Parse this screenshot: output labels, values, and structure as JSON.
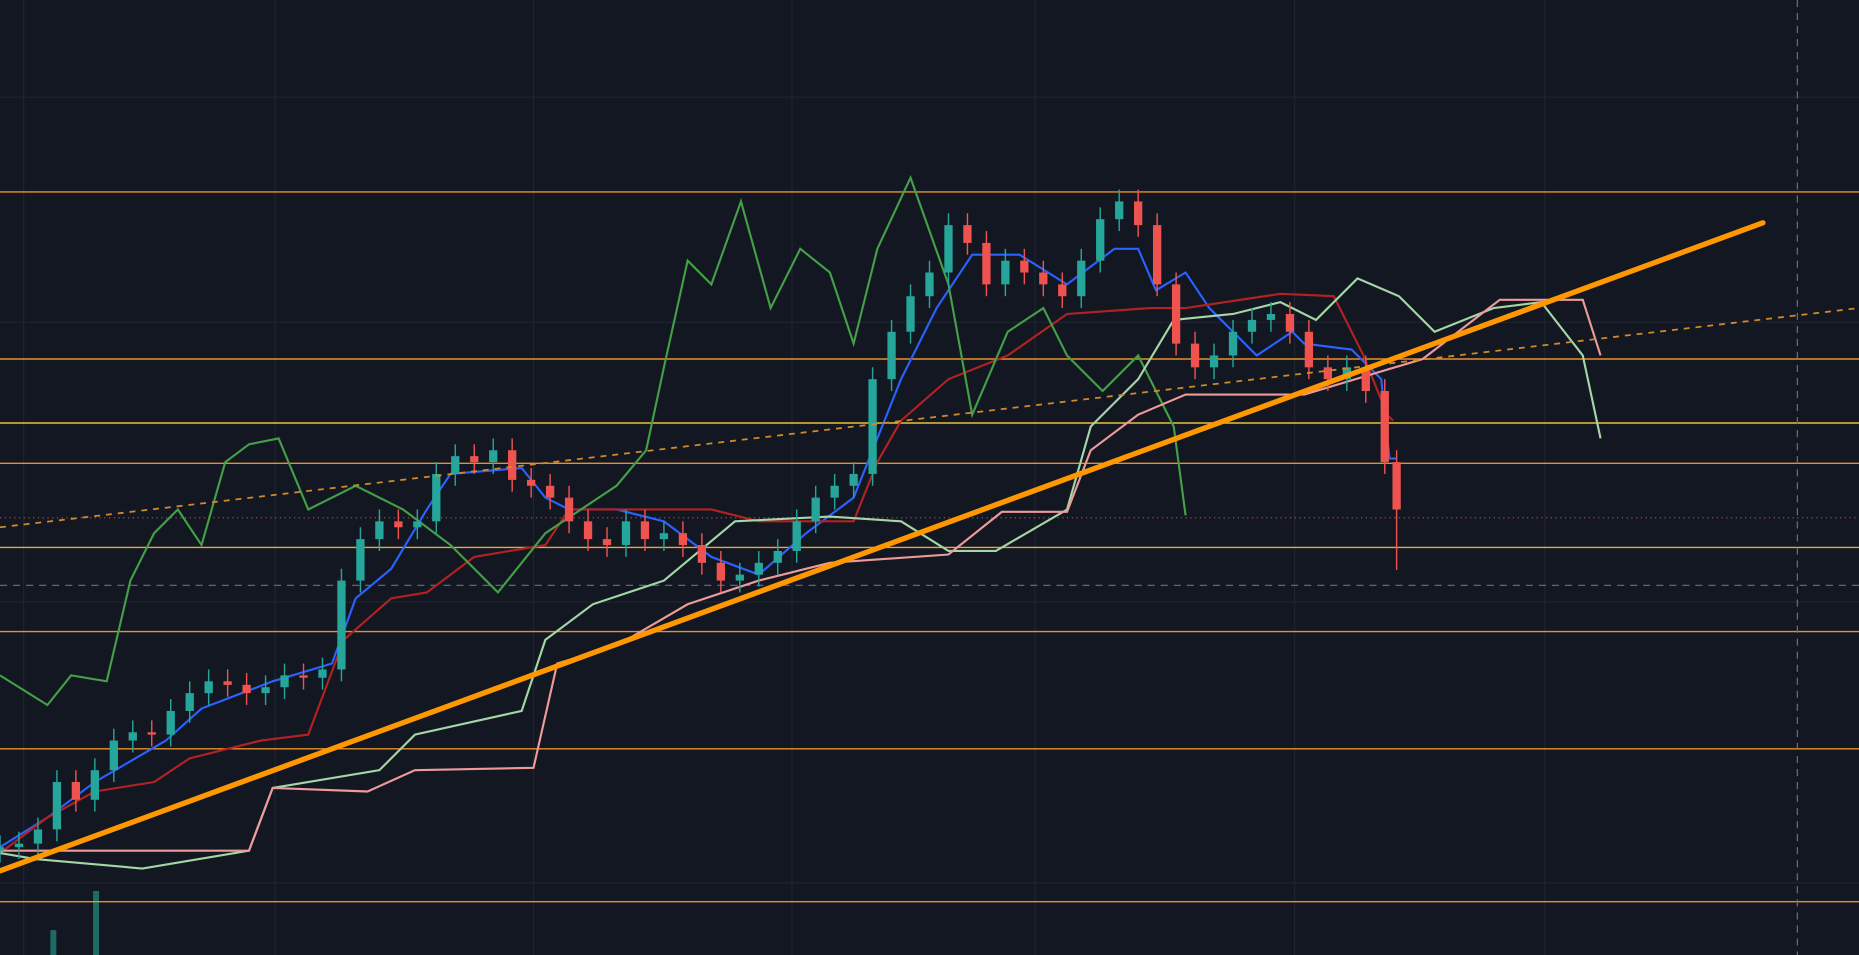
{
  "chart_data": {
    "type": "candlestick",
    "xlim": [
      0,
      1568
    ],
    "ylim": [
      0,
      806
    ],
    "xticks": [
      20,
      232,
      450,
      668,
      873,
      1092,
      1303
    ],
    "yticks": [
      724,
      534,
      298,
      61
    ],
    "grid": true,
    "background": "#131722",
    "up_color": "#26a69a",
    "down_color": "#ef5350",
    "candles": {
      "x": [
        0,
        16,
        32,
        48,
        64,
        80,
        96,
        112,
        128,
        144,
        160,
        176,
        192,
        208,
        224,
        240,
        256,
        272,
        288,
        304,
        320,
        336,
        352,
        368,
        384,
        400,
        416,
        432,
        448,
        464,
        480,
        496,
        512,
        528,
        544,
        560,
        576,
        592,
        608,
        624,
        640,
        656,
        672,
        688,
        704,
        720,
        736,
        752,
        768,
        784,
        800,
        816,
        832,
        848,
        864,
        880,
        896,
        912,
        928,
        944,
        960,
        976,
        992,
        1008,
        1024,
        1040,
        1056,
        1072,
        1088,
        1104,
        1120,
        1136,
        1152,
        1168,
        1178
      ],
      "open": [
        88,
        91,
        94,
        106,
        146,
        131,
        156,
        181,
        188,
        186,
        206,
        221,
        231,
        228,
        221,
        226,
        236,
        234,
        241,
        316,
        351,
        366,
        361,
        366,
        406,
        421,
        416,
        426,
        401,
        396,
        386,
        366,
        351,
        346,
        366,
        351,
        356,
        346,
        331,
        316,
        321,
        331,
        341,
        366,
        386,
        396,
        406,
        486,
        526,
        556,
        576,
        616,
        601,
        566,
        586,
        576,
        566,
        556,
        586,
        621,
        636,
        616,
        566,
        516,
        496,
        506,
        526,
        536,
        541,
        526,
        496,
        486,
        496,
        476,
        416
      ],
      "high": [
        101,
        104,
        116,
        156,
        156,
        166,
        191,
        198,
        198,
        216,
        231,
        241,
        241,
        238,
        236,
        246,
        246,
        251,
        326,
        361,
        376,
        376,
        376,
        416,
        431,
        431,
        436,
        436,
        411,
        406,
        396,
        376,
        361,
        376,
        376,
        366,
        366,
        356,
        341,
        331,
        341,
        351,
        376,
        396,
        406,
        416,
        496,
        536,
        566,
        586,
        626,
        626,
        611,
        596,
        596,
        586,
        576,
        596,
        631,
        646,
        646,
        626,
        576,
        526,
        516,
        536,
        546,
        551,
        551,
        536,
        506,
        506,
        506,
        486,
        426
      ],
      "low": [
        78,
        81,
        84,
        96,
        121,
        121,
        146,
        171,
        176,
        176,
        196,
        211,
        218,
        211,
        211,
        216,
        224,
        224,
        231,
        306,
        341,
        351,
        351,
        356,
        396,
        406,
        406,
        391,
        386,
        376,
        356,
        341,
        336,
        336,
        341,
        341,
        336,
        321,
        306,
        306,
        311,
        321,
        331,
        356,
        376,
        386,
        396,
        476,
        516,
        546,
        566,
        591,
        556,
        556,
        566,
        556,
        546,
        546,
        576,
        611,
        606,
        556,
        506,
        486,
        486,
        496,
        516,
        526,
        516,
        486,
        476,
        476,
        466,
        406,
        325
      ],
      "close": [
        91,
        94,
        106,
        146,
        131,
        156,
        181,
        188,
        186,
        206,
        221,
        231,
        228,
        221,
        226,
        236,
        234,
        241,
        316,
        351,
        366,
        361,
        366,
        406,
        421,
        416,
        426,
        401,
        396,
        386,
        366,
        351,
        346,
        366,
        351,
        356,
        346,
        331,
        316,
        321,
        331,
        341,
        366,
        386,
        396,
        406,
        486,
        526,
        556,
        576,
        616,
        601,
        566,
        586,
        576,
        566,
        556,
        586,
        621,
        636,
        616,
        566,
        516,
        496,
        506,
        526,
        536,
        541,
        526,
        496,
        486,
        496,
        476,
        416,
        376
      ]
    },
    "series": [
      {
        "color": "#2962ff",
        "x": [
          0,
          40,
          80,
          140,
          170,
          230,
          280,
          300,
          330,
          360,
          380,
          440,
          460,
          480,
          520,
          560,
          600,
          640,
          680,
          720,
          740,
          760,
          790,
          820,
          860,
          900,
          940,
          960,
          975,
          1000,
          1020,
          1060,
          1090,
          1100,
          1140,
          1165,
          1172,
          1178
        ],
        "values": [
          91,
          116,
          146,
          181,
          208,
          231,
          246,
          301,
          326,
          376,
          406,
          411,
          386,
          376,
          376,
          366,
          336,
          321,
          356,
          386,
          436,
          486,
          546,
          591,
          591,
          566,
          596,
          596,
          561,
          576,
          546,
          506,
          526,
          516,
          511,
          486,
          419,
          419
        ]
      },
      {
        "color": "#b22222",
        "x": [
          0,
          40,
          80,
          130,
          160,
          220,
          260,
          290,
          330,
          360,
          400,
          460,
          480,
          600,
          640,
          720,
          740,
          760,
          800,
          850,
          900,
          970,
          1000,
          1080,
          1125,
          1150,
          1170,
          1175
        ],
        "values": [
          86,
          116,
          138,
          146,
          166,
          181,
          186,
          266,
          301,
          306,
          336,
          346,
          376,
          376,
          366,
          366,
          416,
          451,
          486,
          506,
          541,
          546,
          546,
          558,
          556,
          506,
          456,
          451
        ]
      },
      {
        "color": "#43a047",
        "x": [
          0,
          40,
          60,
          90,
          110,
          130,
          150,
          170,
          190,
          210,
          235,
          260,
          300,
          340,
          380,
          420,
          460,
          520,
          545,
          560,
          580,
          600,
          625,
          650,
          675,
          700,
          720,
          740,
          768,
          800,
          820,
          850,
          880,
          900,
          930,
          960,
          990,
          1000
        ],
        "values": [
          236,
          211,
          236,
          231,
          316,
          356,
          376,
          346,
          416,
          431,
          436,
          376,
          396,
          376,
          346,
          306,
          356,
          396,
          426,
          496,
          586,
          566,
          636,
          546,
          596,
          576,
          516,
          596,
          656,
          566,
          456,
          526,
          546,
          506,
          476,
          506,
          446,
          371
        ]
      },
      {
        "color": "#a5d6a7",
        "x": [
          0,
          30,
          120,
          210,
          230,
          320,
          350,
          440,
          460,
          500,
          560,
          620,
          700,
          760,
          800,
          840,
          900,
          920,
          960,
          990,
          1040,
          1080,
          1110,
          1145,
          1180,
          1210,
          1260,
          1300,
          1335,
          1350
        ],
        "values": [
          86,
          81,
          73,
          88,
          141,
          156,
          186,
          206,
          266,
          296,
          316,
          366,
          370,
          366,
          341,
          341,
          376,
          446,
          486,
          536,
          541,
          551,
          536,
          571,
          556,
          526,
          546,
          551,
          506,
          436
        ]
      },
      {
        "color": "#ef9a9a",
        "x": [
          0,
          210,
          230,
          310,
          350,
          450,
          470,
          520,
          580,
          640,
          700,
          800,
          845,
          900,
          920,
          960,
          1000,
          1100,
          1200,
          1265,
          1335,
          1350
        ],
        "values": [
          88,
          88,
          141,
          138,
          156,
          158,
          246,
          261,
          296,
          316,
          331,
          338,
          374,
          374,
          426,
          456,
          473,
          473,
          503,
          553,
          553,
          506
        ]
      }
    ],
    "volume": {
      "color": "#1e6b66",
      "x": [
        45,
        81
      ],
      "values": [
        21,
        54
      ]
    },
    "levels": {
      "values": [
        644,
        503,
        449,
        415,
        344,
        273,
        174,
        45
      ],
      "colors": [
        "#e8912a",
        "#e8912a",
        "#e8c23a",
        "#e8912a",
        "#e8a83a",
        "#e8912a",
        "#e8912a",
        "#e8912a"
      ]
    },
    "dotted_level": {
      "value": 369,
      "color": "#c0504d"
    },
    "dashed_level": {
      "value": 312,
      "color": "#6b7080"
    },
    "vertical_marker": {
      "x": 1516,
      "color": "#6b7080"
    },
    "trend_line": {
      "x": [
        0,
        1487
      ],
      "y": [
        71,
        618
      ],
      "color": "#ff9800"
    },
    "dashed_trend": {
      "x": [
        0,
        1568
      ],
      "y": [
        361,
        546
      ],
      "color": "#d08a2a"
    }
  }
}
